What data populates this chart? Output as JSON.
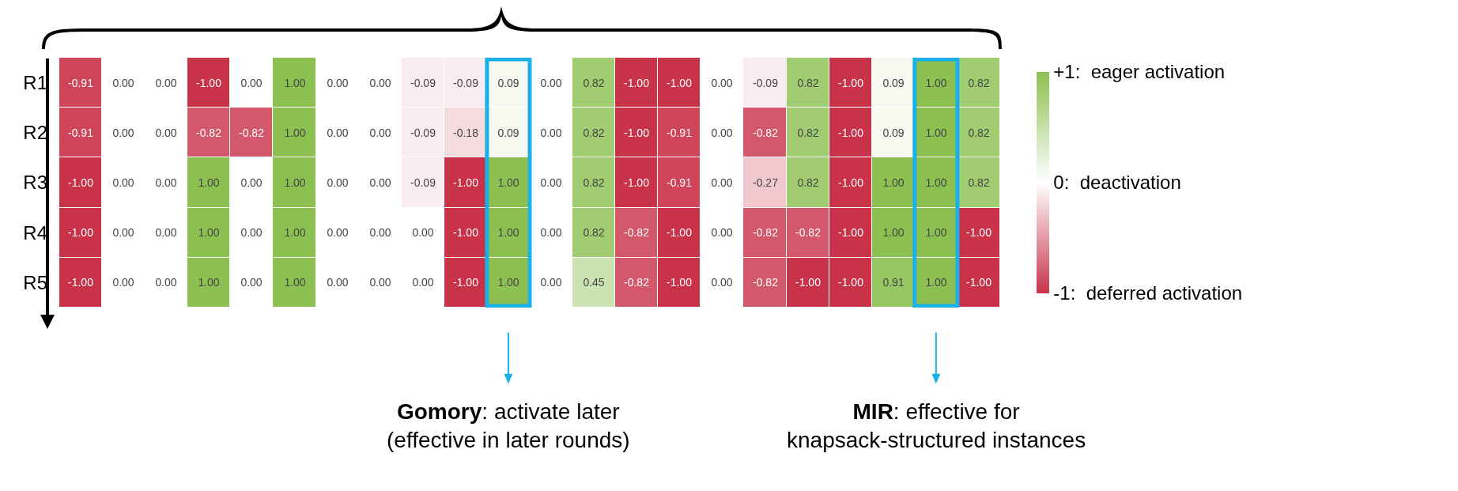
{
  "chart_data": {
    "type": "heatmap",
    "categories": [
      null,
      null,
      null,
      null,
      null,
      null,
      null,
      null,
      null,
      null,
      null,
      null,
      null,
      null,
      null,
      null,
      null,
      null,
      null,
      null,
      null,
      null
    ],
    "y_categories": [
      "R1",
      "R2",
      "R3",
      "R4",
      "R5"
    ],
    "cells": [
      [
        -0.91,
        0,
        0,
        -1,
        0,
        1,
        0,
        0,
        -0.09,
        -0.09,
        0.09,
        0,
        0.82,
        -1,
        -1,
        0,
        -0.09,
        0.82,
        -1,
        0.09,
        1,
        0.82
      ],
      [
        -0.91,
        0,
        0,
        -0.82,
        -0.82,
        1,
        0,
        0,
        -0.09,
        -0.18,
        0.09,
        0,
        0.82,
        -1,
        -0.91,
        0,
        -0.82,
        0.82,
        -1,
        0.09,
        1,
        0.82
      ],
      [
        -1,
        0,
        0,
        1,
        0,
        1,
        0,
        0,
        -0.09,
        -1,
        1,
        0,
        0.82,
        -1,
        -0.91,
        0,
        -0.27,
        0.82,
        -1,
        1,
        1,
        0.82
      ],
      [
        -1,
        0,
        0,
        1,
        0,
        1,
        0,
        0,
        0,
        -1,
        1,
        0,
        0.82,
        -0.82,
        -1,
        0,
        -0.82,
        -0.82,
        -1,
        1,
        1,
        -1
      ],
      [
        -1,
        0,
        0,
        1,
        0,
        1,
        0,
        0,
        0,
        -1,
        1,
        0,
        0.45,
        -0.82,
        -1,
        0,
        -0.82,
        -1,
        -1,
        0.91,
        1,
        -1
      ]
    ],
    "cell_labels": [
      [
        "-0.91",
        "0.00",
        "0.00",
        "-1.00",
        "0.00",
        "1.00",
        "0.00",
        "0.00",
        "-0.09",
        "-0.09",
        "0.09",
        "0.00",
        "0.82",
        "-1.00",
        "-1.00",
        "0.00",
        "-0.09",
        "0.82",
        "-1.00",
        "0.09",
        "1.00",
        "0.82"
      ],
      [
        "-0.91",
        "0.00",
        "0.00",
        "-0.82",
        "-0.82",
        "1.00",
        "0.00",
        "0.00",
        "-0.09",
        "-0.18",
        "0.09",
        "0.00",
        "0.82",
        "-1.00",
        "-0.91",
        "0.00",
        "-0.82",
        "0.82",
        "-1.00",
        "0.09",
        "1.00",
        "0.82"
      ],
      [
        "-1.00",
        "0.00",
        "0.00",
        "1.00",
        "0.00",
        "1.00",
        "0.00",
        "0.00",
        "-0.09",
        "-1.00",
        "1.00",
        "0.00",
        "0.82",
        "-1.00",
        "-0.91",
        "0.00",
        "-0.27",
        "0.82",
        "-1.00",
        "1.00",
        "1.00",
        "0.82"
      ],
      [
        "-1.00",
        "0.00",
        "0.00",
        "1.00",
        "0.00",
        "1.00",
        "0.00",
        "0.00",
        "0.00",
        "-1.00",
        "1.00",
        "0.00",
        "0.82",
        "-0.82",
        "-1.00",
        "0.00",
        "-0.82",
        "-0.82",
        "-1.00",
        "1.00",
        "1.00",
        "-1.00"
      ],
      [
        "-1.00",
        "0.00",
        "0.00",
        "1.00",
        "0.00",
        "1.00",
        "0.00",
        "0.00",
        "0.00",
        "-1.00",
        "1.00",
        "0.00",
        "0.45",
        "-0.82",
        "-1.00",
        "0.00",
        "-0.82",
        "-1.00",
        "-1.00",
        "0.91",
        "1.00",
        "-1.00"
      ]
    ],
    "clim": [
      -1,
      1
    ],
    "cticks": [
      {
        "value": 1,
        "label": "+1:  eager activation"
      },
      {
        "value": 0,
        "label": "0:  deactivation"
      },
      {
        "value": -1,
        "label": "-1:  deferred activation"
      }
    ],
    "annotations": [
      "Gomory: activate later\n(effective in later rounds)",
      "MIR: effective for\nknapsack-structured instances"
    ]
  }
}
